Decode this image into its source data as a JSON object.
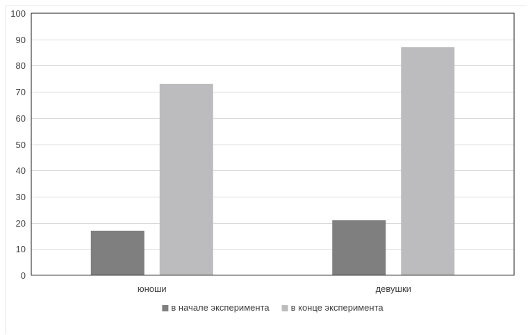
{
  "chart_data": {
    "type": "bar",
    "categories": [
      "юноши",
      "девушки"
    ],
    "series": [
      {
        "name": "в начале эксперимента",
        "values": [
          17,
          21
        ],
        "color": "#7f7f80"
      },
      {
        "name": "в конце эксперимента",
        "values": [
          73,
          87
        ],
        "color": "#bcbcbe"
      }
    ],
    "ylim": [
      0,
      100
    ],
    "yticks": [
      0,
      10,
      20,
      30,
      40,
      50,
      60,
      70,
      80,
      90,
      100
    ],
    "title": "",
    "xlabel": "",
    "ylabel": "",
    "grid": true,
    "legend_position": "bottom",
    "colors": {
      "grid": "#d9d9d9",
      "axis": "#404040",
      "plot_border": "#1a1a1a"
    }
  }
}
